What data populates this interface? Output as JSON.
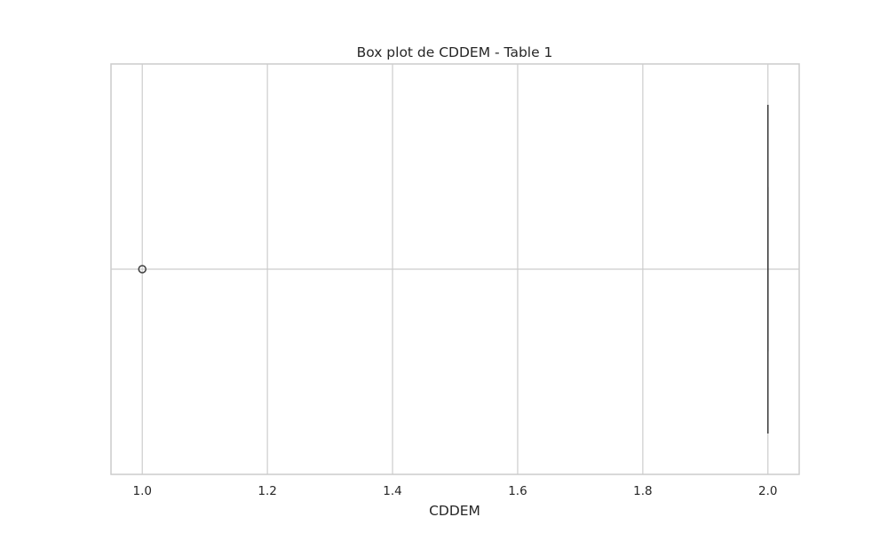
{
  "chart_data": {
    "type": "box",
    "orientation": "horizontal",
    "title": "Box plot de CDDEM - Table 1",
    "xlabel": "CDDEM",
    "ylabel": "",
    "xlim": [
      0.95,
      2.05
    ],
    "xticks": [
      1.0,
      1.2,
      1.4,
      1.6,
      1.8,
      2.0
    ],
    "xtick_labels": [
      "1.0",
      "1.2",
      "1.4",
      "1.6",
      "1.8",
      "2.0"
    ],
    "grid": true,
    "box": {
      "min": 2.0,
      "q1": 2.0,
      "median": 2.0,
      "q3": 2.0,
      "max": 2.0,
      "outliers": [
        1.0
      ]
    },
    "colors": {
      "grid": "#cccccc",
      "frame": "#cccccc",
      "box_line": "#3f3f3f",
      "text": "#262626"
    }
  }
}
